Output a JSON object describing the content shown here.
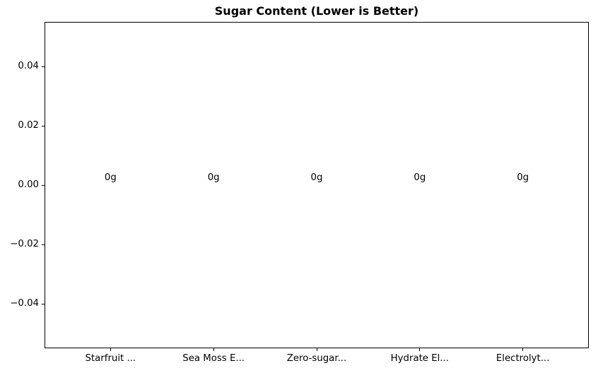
{
  "title": "Sugar Content (Lower is Better)",
  "colors": {
    "background": "#ffffff",
    "text": "#000000",
    "axis": "#000000"
  },
  "chart_data": {
    "type": "bar",
    "title": "Sugar Content (Lower is Better)",
    "xlabel": "",
    "ylabel": "",
    "categories": [
      "Starfruit ...",
      "Sea Moss E...",
      "Zero-sugar...",
      "Hydrate El...",
      "Electrolyt..."
    ],
    "values": [
      0,
      0,
      0,
      0,
      0
    ],
    "bar_labels": [
      "0g",
      "0g",
      "0g",
      "0g",
      "0g"
    ],
    "ylim": [
      -0.055,
      0.055
    ],
    "xlim": [
      -0.64,
      4.64
    ],
    "yticks": [
      0.04,
      0.02,
      0.0,
      -0.02,
      -0.04
    ],
    "ytick_labels": [
      "0.04",
      "0.02",
      "0.00",
      "−0.02",
      "−0.04"
    ],
    "grid": false,
    "legend": null
  }
}
